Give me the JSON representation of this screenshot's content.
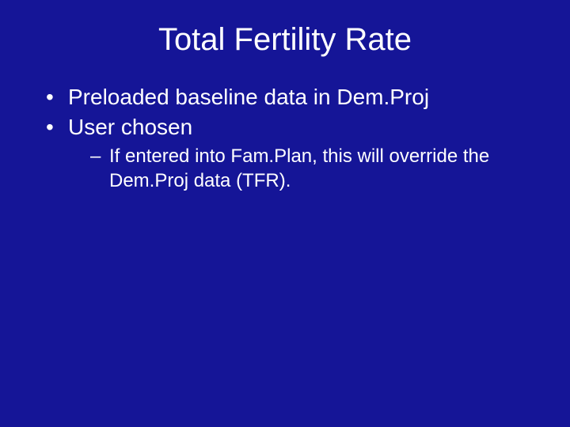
{
  "slide": {
    "title": "Total Fertility Rate",
    "bullets": [
      {
        "text": "Preloaded baseline data in Dem.Proj"
      },
      {
        "text": "User chosen"
      }
    ],
    "sub_bullet": "If entered into Fam.Plan, this will override the Dem.Proj data (TFR).",
    "background_color": "#151597",
    "text_color": "#ffffff",
    "title_fontsize": 40,
    "bullet_fontsize": 28,
    "sub_bullet_fontsize": 24
  }
}
